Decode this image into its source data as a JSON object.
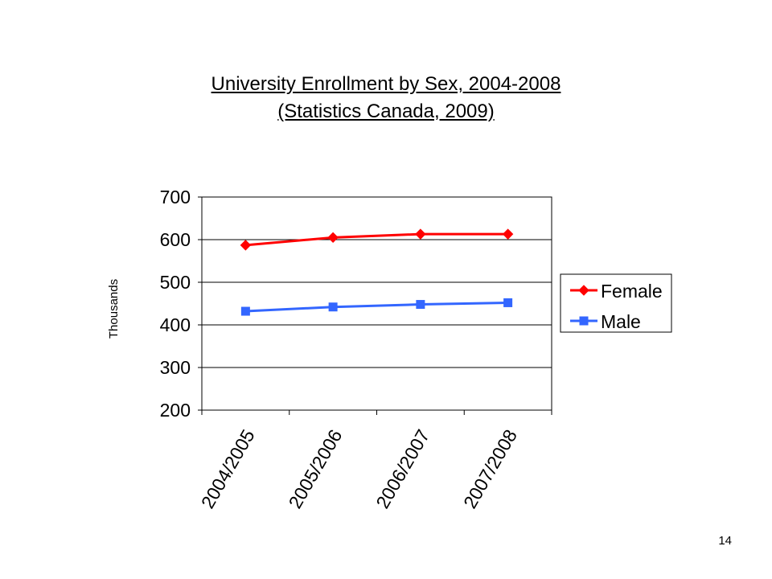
{
  "slide": {
    "title_line1": "University Enrollment by Sex, 2004-2008",
    "title_line2": "(Statistics Canada, 2009)",
    "page_number": "14"
  },
  "chart_data": {
    "type": "line",
    "title": "University Enrollment by Sex, 2004-2008 (Statistics Canada, 2009)",
    "xlabel": "",
    "ylabel": "Thousands",
    "categories": [
      "2004/2005",
      "2005/2006",
      "2006/2007",
      "2007/2008"
    ],
    "ylim": [
      200,
      700
    ],
    "yticks": [
      200,
      300,
      400,
      500,
      600,
      700
    ],
    "grid": "horizontal",
    "legend": "right",
    "series": [
      {
        "name": "Female",
        "values": [
          587,
          605,
          613,
          613
        ],
        "color": "#ff0000",
        "marker": "diamond"
      },
      {
        "name": "Male",
        "values": [
          432,
          442,
          448,
          452
        ],
        "color": "#3366ff",
        "marker": "square"
      }
    ]
  }
}
